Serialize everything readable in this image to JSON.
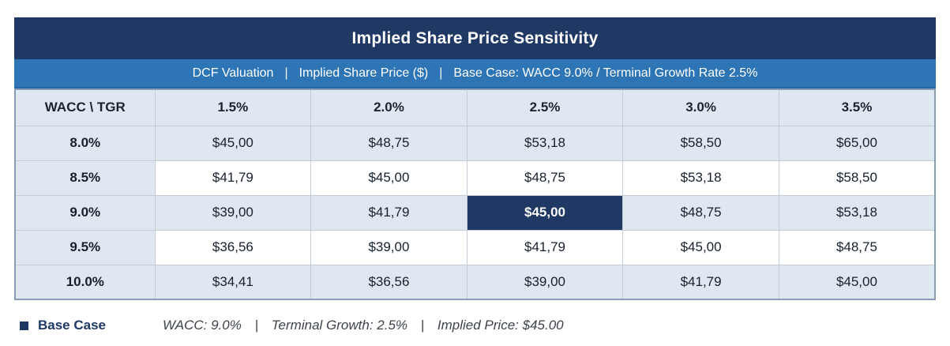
{
  "title": "Implied Share Price Sensitivity",
  "subtitle": {
    "part1": "DCF Valuation",
    "part2": "Implied Share Price ($)",
    "part3": "Base Case: WACC 9.0% / Terminal Growth Rate 2.5%",
    "separator": "|"
  },
  "colors": {
    "title_bar": "#1F3864",
    "subtitle_bar": "#2E75B6",
    "row_light": "#DFE7F1",
    "row_white": "#FFFFFF",
    "highlight_cell": "#1F3864",
    "cell_border": "#C3CBD7",
    "outer_border": "#8B9DB4",
    "legend_navy": "#1F3864"
  },
  "chart_data": {
    "type": "table",
    "title": "Implied Share Price Sensitivity",
    "subtitle": "DCF Valuation | Implied Share Price ($) | Base Case: WACC 9.0% / Terminal Growth Rate 2.5%",
    "corner_label": "WACC \\ TGR",
    "columns": [
      "1.5%",
      "2.0%",
      "2.5%",
      "3.0%",
      "3.5%"
    ],
    "rows": [
      {
        "label": "8.0%",
        "values": [
          "$45,00",
          "$48,75",
          "$53,18",
          "$58,50",
          "$65,00"
        ]
      },
      {
        "label": "8.5%",
        "values": [
          "$41,79",
          "$45,00",
          "$48,75",
          "$53,18",
          "$58,50"
        ]
      },
      {
        "label": "9.0%",
        "values": [
          "$39,00",
          "$41,79",
          "$45,00",
          "$48,75",
          "$53,18"
        ]
      },
      {
        "label": "9.5%",
        "values": [
          "$36,56",
          "$39,00",
          "$41,79",
          "$45,00",
          "$48,75"
        ]
      },
      {
        "label": "10.0%",
        "values": [
          "$34,41",
          "$36,56",
          "$39,00",
          "$41,79",
          "$45,00"
        ]
      }
    ],
    "highlight": {
      "row_label": "9.0%",
      "column_label": "2.5%",
      "value": "$45,00"
    },
    "legend": {
      "marker": "square",
      "label": "Base Case",
      "description_part1": "WACC: 9.0%",
      "description_part2": "Terminal Growth: 2.5%",
      "description_part3": "Implied Price: $45.00",
      "separator": "|"
    }
  }
}
